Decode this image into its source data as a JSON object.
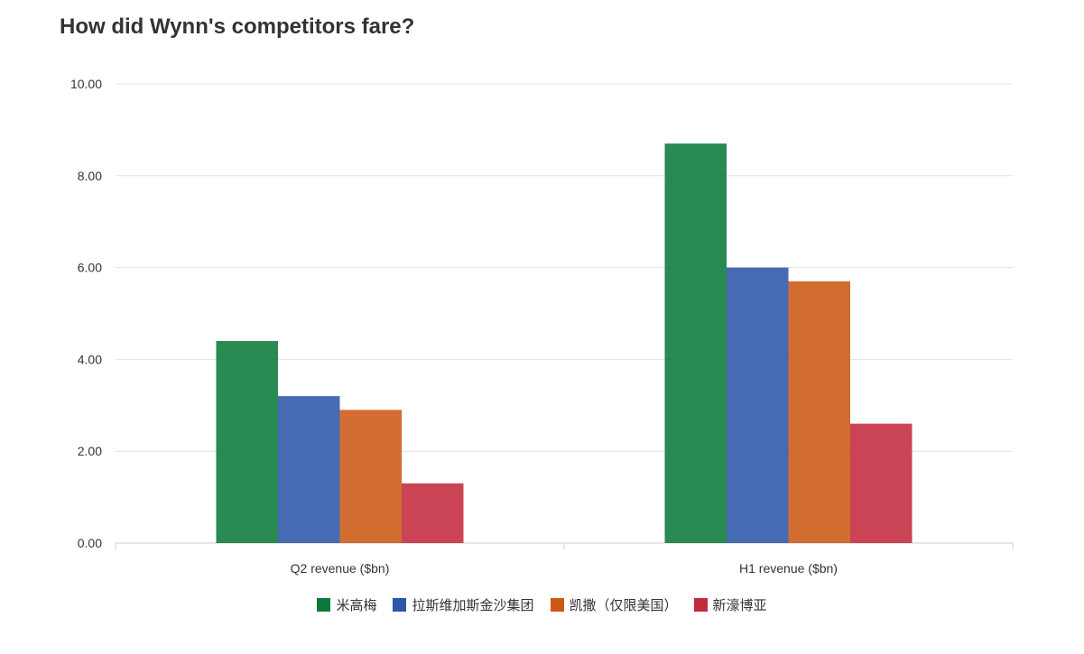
{
  "title": "How did Wynn's competitors fare?",
  "chart_data": {
    "type": "bar",
    "categories": [
      "Q2 revenue ($bn)",
      "H1 revenue ($bn)"
    ],
    "series": [
      {
        "name": "米高梅",
        "color": "#0b7a3a",
        "values": [
          4.4,
          8.7
        ]
      },
      {
        "name": "拉斯维加斯金沙集团",
        "color": "#2c56a8",
        "values": [
          3.2,
          6.0
        ]
      },
      {
        "name": "凯撒（仅限美国）",
        "color": "#cd5815",
        "values": [
          2.9,
          5.7
        ]
      },
      {
        "name": "新濠博亚",
        "color": "#c32a3f",
        "values": [
          1.3,
          2.6
        ]
      }
    ],
    "ylim": [
      0,
      10
    ],
    "yticks": [
      "0.00",
      "2.00",
      "4.00",
      "6.00",
      "8.00",
      "10.00"
    ],
    "grid": true,
    "legend_position": "bottom"
  }
}
